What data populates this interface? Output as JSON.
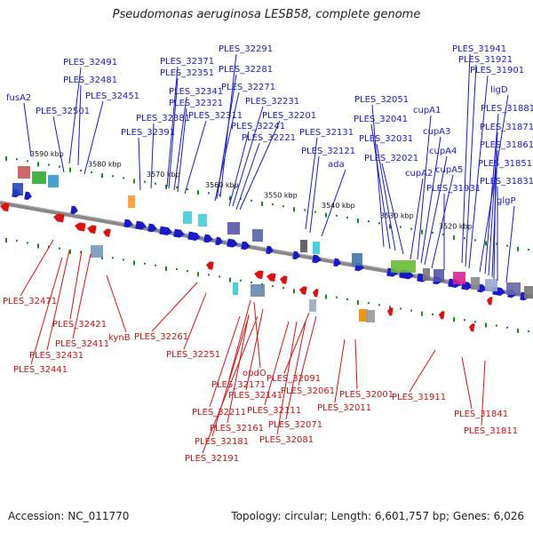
{
  "title": "Pseudomonas aeruginosa LESB58, complete genome",
  "accession": "Accession: NC_011770",
  "summary": "Topology: circular; Length: 6,601,757 bp; Genes: 6,026",
  "colors": {
    "forward": "#1a1acc",
    "reverse": "#dd1111",
    "backbone": "#888888",
    "tick": "#1a8a1a"
  },
  "kbp_labels": [
    {
      "text": "3590 kbp"
    },
    {
      "text": "3580 kbp"
    },
    {
      "text": "3570 kbp"
    },
    {
      "text": "3560 kbp"
    },
    {
      "text": "3550 kbp"
    },
    {
      "text": "3540 kbp"
    },
    {
      "text": "3530 kbp"
    },
    {
      "text": "3520 kbp"
    }
  ],
  "top_labels": [
    {
      "text": "fusA2"
    },
    {
      "text": "PLES_32491"
    },
    {
      "text": "PLES_32481"
    },
    {
      "text": "PLES_32501"
    },
    {
      "text": "PLES_32451"
    },
    {
      "text": "PLES_32371"
    },
    {
      "text": "PLES_32351"
    },
    {
      "text": "PLES_32341"
    },
    {
      "text": "PLES_32321"
    },
    {
      "text": "PLES_32381"
    },
    {
      "text": "PLES_32311"
    },
    {
      "text": "PLES_32391"
    },
    {
      "text": "PLES_32291"
    },
    {
      "text": "PLES_32281"
    },
    {
      "text": "PLES_32271"
    },
    {
      "text": "PLES_32231"
    },
    {
      "text": "PLES_32201"
    },
    {
      "text": "PLES_32241"
    },
    {
      "text": "PLES_32221"
    },
    {
      "text": "PLES_32131"
    },
    {
      "text": "PLES_32121"
    },
    {
      "text": "ada"
    },
    {
      "text": "PLES_32051"
    },
    {
      "text": "PLES_32041"
    },
    {
      "text": "PLES_32031"
    },
    {
      "text": "PLES_32021"
    },
    {
      "text": "cupA1"
    },
    {
      "text": "cupA3"
    },
    {
      "text": "cupA2"
    },
    {
      "text": "cupA4"
    },
    {
      "text": "cupA5"
    },
    {
      "text": "PLES_31931"
    },
    {
      "text": "PLES_31941"
    },
    {
      "text": "PLES_31921"
    },
    {
      "text": "PLES_31901"
    },
    {
      "text": "ligD"
    },
    {
      "text": "PLES_31881"
    },
    {
      "text": "PLES_31871"
    },
    {
      "text": "PLES_31861"
    },
    {
      "text": "PLES_31851"
    },
    {
      "text": "PLES_31831"
    },
    {
      "text": "glgP"
    }
  ],
  "bottom_labels": [
    {
      "text": "PLES_32471"
    },
    {
      "text": "PLES_32421"
    },
    {
      "text": "PLES_32411"
    },
    {
      "text": "kynB"
    },
    {
      "text": "PLES_32431"
    },
    {
      "text": "PLES_32441"
    },
    {
      "text": "PLES_32261"
    },
    {
      "text": "PLES_32251"
    },
    {
      "text": "opdO"
    },
    {
      "text": "PLES_32171"
    },
    {
      "text": "PLES_32141"
    },
    {
      "text": "PLES_32211"
    },
    {
      "text": "PLES_32161"
    },
    {
      "text": "PLES_32181"
    },
    {
      "text": "PLES_32191"
    },
    {
      "text": "PLES_32091"
    },
    {
      "text": "PLES_32061"
    },
    {
      "text": "PLES_32111"
    },
    {
      "text": "PLES_32071"
    },
    {
      "text": "PLES_32081"
    },
    {
      "text": "PLES_32001"
    },
    {
      "text": "PLES_32011"
    },
    {
      "text": "PLES_31911"
    },
    {
      "text": "PLES_31841"
    },
    {
      "text": "PLES_31811"
    }
  ]
}
